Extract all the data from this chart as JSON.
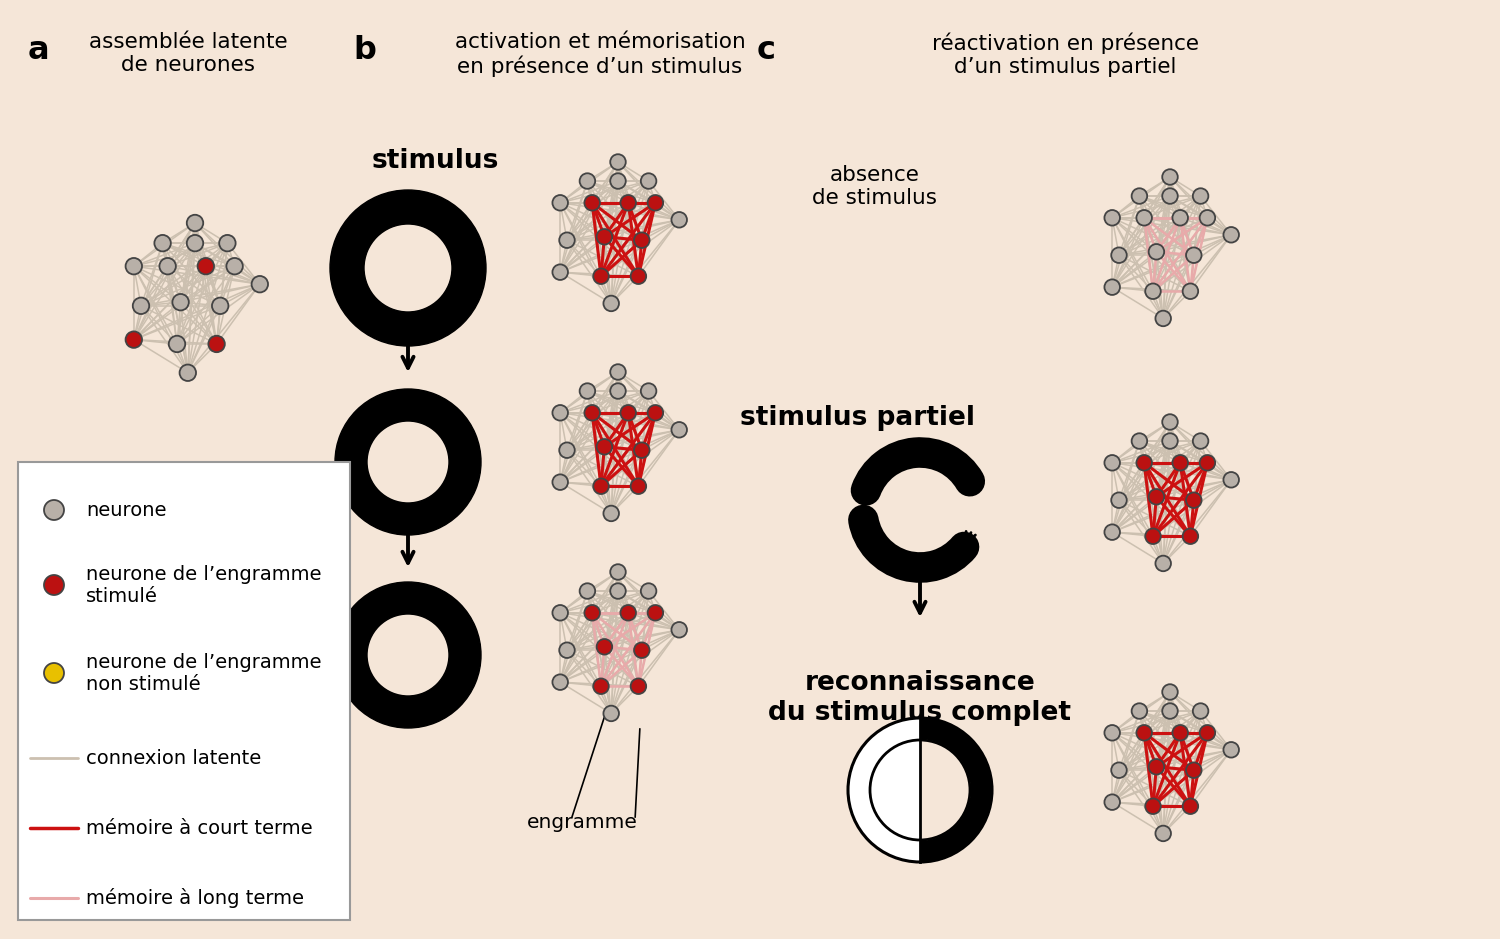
{
  "bg_color": "#f5e6d8",
  "neuron_gray": "#b8b0a8",
  "neuron_gray_edge": "#555555",
  "neuron_red": "#bb1111",
  "neuron_yellow": "#e8c000",
  "conn_latent": "#ccc0b0",
  "conn_short": "#cc1111",
  "conn_long": "#e8aaaa",
  "section_a_label": "a",
  "section_b_label": "b",
  "section_c_label": "c",
  "title_a": "assemblée latente\nde neurones",
  "title_b": "activation et mémorisation\nen présence d’un stimulus",
  "title_c": "réactivation en présence\nd’un stimulus partiel",
  "label_stimulus": "stimulus",
  "label_absence": "absence\nde stimulus",
  "label_stimulus_partiel": "stimulus partiel",
  "label_reconnaissance": "reconnaissance\ndu stimulus complet",
  "label_engramme": "engramme"
}
